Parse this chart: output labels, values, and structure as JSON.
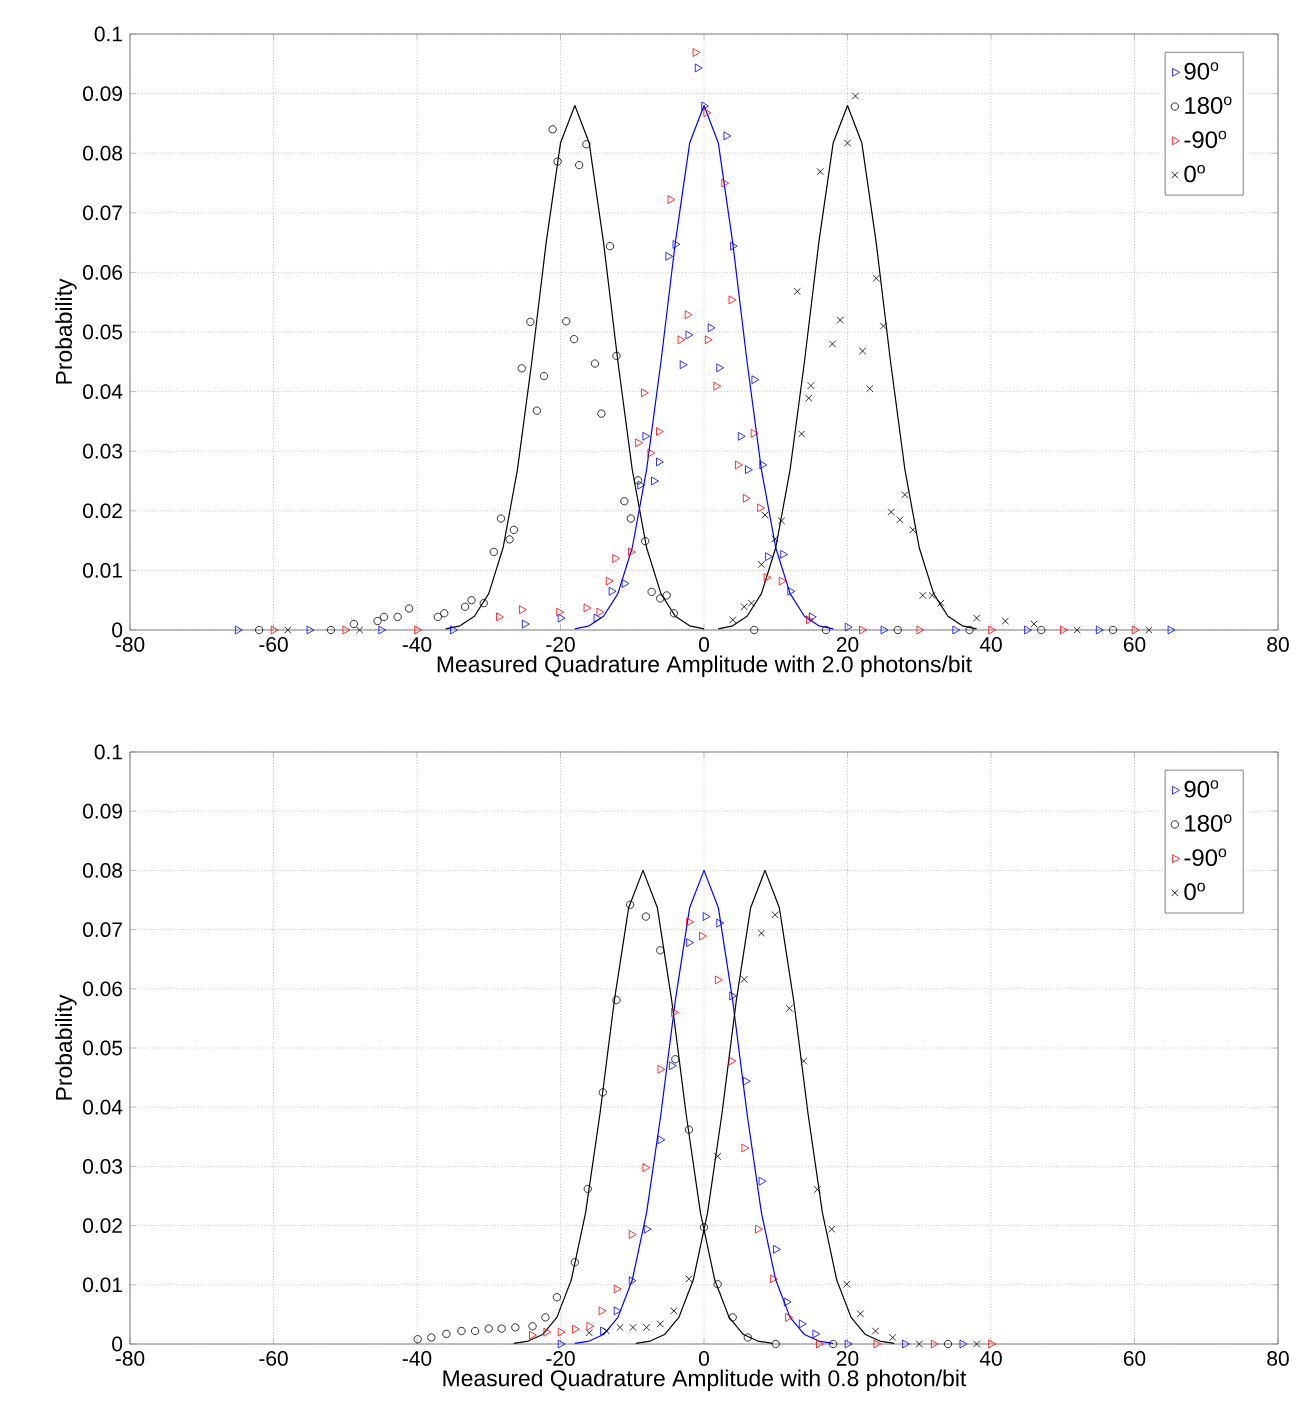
{
  "chart_data": [
    {
      "type": "scatter",
      "xlabel": "Measured Quadrature Amplitude with 2.0 photons/bit",
      "ylabel": "Probability",
      "xlim": [
        -80,
        80
      ],
      "ylim": [
        0,
        0.1
      ],
      "xticks": [
        -80,
        -60,
        -40,
        -20,
        0,
        20,
        40,
        60,
        80
      ],
      "yticks": [
        0,
        0.01,
        0.02,
        0.03,
        0.04,
        0.05,
        0.06,
        0.07,
        0.08,
        0.09,
        0.1
      ],
      "grid": true,
      "legend": "top right",
      "series": [
        {
          "name": "90$^{o}$",
          "color": "#0000ff",
          "marker": "triangle",
          "x": [
            -65,
            -55,
            -45,
            -35,
            -25,
            -20,
            -15,
            -12.9,
            -11.1,
            -8.9,
            -8.2,
            -7,
            -6.3,
            -5,
            -4,
            -3,
            -2.2,
            -0.9,
            0,
            0.9,
            2.1,
            3.1,
            4,
            5.1,
            6.1,
            7,
            8.1,
            8.9,
            11,
            12,
            15,
            20,
            25,
            35,
            45,
            55,
            65
          ],
          "values": [
            0,
            0,
            0,
            0,
            0.001,
            0.002,
            0.002,
            0.0065,
            0.0078,
            0.0243,
            0.0325,
            0.025,
            0.0282,
            0.0627,
            0.0647,
            0.0445,
            0.0495,
            0.0943,
            0.0879,
            0.0507,
            0.044,
            0.0829,
            0.0644,
            0.0325,
            0.0269,
            0.042,
            0.0277,
            0.0123,
            0.0127,
            0.0065,
            0.0022,
            0.0005,
            0,
            0,
            0,
            0,
            0
          ]
        },
        {
          "name": "180$^{o}$",
          "color": "#000000",
          "marker": "circle",
          "x": [
            -62,
            -52,
            -48.8,
            -45.5,
            -44.6,
            -42.7,
            -41.1,
            -37.1,
            -36.2,
            -33.3,
            -32.4,
            -30.7,
            -29.3,
            -28.3,
            -27.1,
            -26.5,
            -25.4,
            -24.2,
            -23.3,
            -22.3,
            -21.1,
            -20.4,
            -19.2,
            -18.1,
            -17.4,
            -16.4,
            -15.2,
            -14.3,
            -13.1,
            -12.2,
            -11.1,
            -10.2,
            -9.2,
            -8.2,
            -7.3,
            -6.1,
            -5.2,
            -4.2,
            7,
            17,
            27,
            37,
            47,
            57
          ],
          "values": [
            0,
            0,
            0.001,
            0.0015,
            0.0022,
            0.0022,
            0.0036,
            0.0022,
            0.0028,
            0.0039,
            0.005,
            0.0045,
            0.0131,
            0.0187,
            0.0152,
            0.0168,
            0.0439,
            0.0517,
            0.0368,
            0.0426,
            0.084,
            0.0786,
            0.0518,
            0.0488,
            0.078,
            0.0815,
            0.0447,
            0.0363,
            0.0644,
            0.046,
            0.0216,
            0.0187,
            0.0251,
            0.0149,
            0.0064,
            0.0053,
            0.0058,
            0.0028,
            0,
            0,
            0,
            0,
            0,
            0
          ]
        },
        {
          "name": "-90$^{o}$",
          "color": "#ff0000",
          "marker": "triangle",
          "x": [
            -60,
            -50,
            -40,
            -28.6,
            -25.4,
            -20.2,
            -16.4,
            -14.6,
            -13.3,
            -12.4,
            -10.2,
            -9.2,
            -8.4,
            -7.5,
            -6.3,
            -4.7,
            -3.3,
            -2.3,
            -1.2,
            0.3,
            0.5,
            1.7,
            2.8,
            3.8,
            4.7,
            5.8,
            6.9,
            7.8,
            8.7,
            10.8,
            14.6,
            22,
            30,
            40,
            50,
            60
          ],
          "values": [
            0,
            0,
            0,
            0.0022,
            0.0034,
            0.003,
            0.0037,
            0.003,
            0.0082,
            0.012,
            0.0131,
            0.0314,
            0.0398,
            0.0297,
            0.0333,
            0.0722,
            0.0487,
            0.0529,
            0.0969,
            0.0868,
            0.0487,
            0.0409,
            0.075,
            0.0554,
            0.0277,
            0.0221,
            0.033,
            0.0205,
            0.0088,
            0.0082,
            0.0017,
            0,
            0,
            0,
            0,
            0
          ]
        },
        {
          "name": "0$^{o}$",
          "color": "#000000",
          "marker": "cross",
          "x": [
            -58,
            -48,
            4,
            5.6,
            6.6,
            8,
            8.5,
            9.9,
            10.8,
            13,
            13.6,
            14.6,
            14.9,
            16.2,
            17.9,
            19,
            20,
            21.1,
            22.1,
            23.1,
            24,
            25,
            26.1,
            27.3,
            28,
            29.1,
            30.5,
            31.8,
            33,
            38,
            42,
            46,
            52,
            62
          ],
          "values": [
            0,
            0,
            0.0017,
            0.0039,
            0.0045,
            0.011,
            0.0193,
            0.0153,
            0.0183,
            0.0568,
            0.0329,
            0.0389,
            0.041,
            0.0769,
            0.048,
            0.052,
            0.0817,
            0.0896,
            0.0468,
            0.0405,
            0.059,
            0.051,
            0.0198,
            0.0185,
            0.0227,
            0.0168,
            0.0058,
            0.0058,
            0.0045,
            0.002,
            0.0015,
            0.001,
            0,
            0
          ]
        },
        {
          "type": "line",
          "color": "#000000",
          "marker": "none",
          "x": [
            -36,
            -34,
            -32,
            -30,
            -28,
            -26,
            -24,
            -22,
            -20,
            -18,
            -16,
            -14,
            -12,
            -10,
            -8,
            -6,
            -4,
            -2,
            0
          ],
          "values": [
            0.0002,
            0.0007,
            0.0023,
            0.0061,
            0.0138,
            0.0269,
            0.045,
            0.065,
            0.0817,
            0.088,
            0.0817,
            0.065,
            0.045,
            0.0269,
            0.0138,
            0.0061,
            0.0023,
            0.0007,
            0.0002
          ]
        },
        {
          "type": "line",
          "color": "#0000ff",
          "marker": "none",
          "x": [
            -18,
            -16,
            -14,
            -12,
            -10,
            -8,
            -6,
            -4,
            -2,
            0,
            2,
            4,
            6,
            8,
            10,
            12,
            14,
            16,
            18
          ],
          "values": [
            0.0002,
            0.0007,
            0.0023,
            0.0061,
            0.0138,
            0.0269,
            0.045,
            0.065,
            0.0817,
            0.088,
            0.0817,
            0.065,
            0.045,
            0.0269,
            0.0138,
            0.0061,
            0.0023,
            0.0007,
            0.0002
          ]
        },
        {
          "type": "line",
          "color": "#000000",
          "marker": "none",
          "x": [
            2,
            4,
            6,
            8,
            10,
            12,
            14,
            16,
            18,
            20,
            22,
            24,
            26,
            28,
            30,
            32,
            34,
            36,
            38
          ],
          "values": [
            0.0002,
            0.0007,
            0.0023,
            0.0061,
            0.0138,
            0.0269,
            0.045,
            0.065,
            0.0817,
            0.088,
            0.0817,
            0.065,
            0.045,
            0.0269,
            0.0138,
            0.0061,
            0.0023,
            0.0007,
            0.0002
          ]
        }
      ]
    },
    {
      "type": "scatter",
      "xlabel": "Measured Quadrature Amplitude with 0.8 photon/bit",
      "ylabel": "Probability",
      "xlim": [
        -80,
        80
      ],
      "ylim": [
        0,
        0.1
      ],
      "xticks": [
        -80,
        -60,
        -40,
        -20,
        0,
        20,
        40,
        60,
        80
      ],
      "yticks": [
        0,
        0.01,
        0.02,
        0.03,
        0.04,
        0.05,
        0.06,
        0.07,
        0.08,
        0.09,
        0.1
      ],
      "grid": true,
      "legend": "top right",
      "series": [
        {
          "name": "90$^{o}$",
          "color": "#0000ff",
          "marker": "triangle",
          "x": [
            -20,
            -14.1,
            -12.2,
            -10.1,
            -8,
            -6.1,
            -4.5,
            -2.1,
            0.2,
            2.1,
            3.9,
            5.8,
            8,
            10,
            11.5,
            13.6,
            15.5,
            20,
            28,
            36
          ],
          "values": [
            0,
            0.0022,
            0.0056,
            0.0107,
            0.0194,
            0.0345,
            0.047,
            0.0678,
            0.0722,
            0.0711,
            0.0588,
            0.0444,
            0.0275,
            0.016,
            0.0071,
            0.0034,
            0.0017,
            0,
            0,
            0
          ]
        },
        {
          "name": "180$^{o}$",
          "color": "#000000",
          "marker": "circle",
          "x": [
            -39.9,
            -38,
            -35.9,
            -33.8,
            -31.9,
            -30,
            -28.2,
            -26.3,
            -23.9,
            -22.1,
            -20.5,
            -18,
            -16.2,
            -14.1,
            -12.2,
            -10.3,
            -8.1,
            -6.1,
            -4,
            -2.1,
            0,
            1.9,
            4,
            6.1,
            10,
            18,
            34
          ],
          "values": [
            0.0008,
            0.0011,
            0.0017,
            0.0022,
            0.0022,
            0.0026,
            0.0026,
            0.0028,
            0.003,
            0.0045,
            0.0079,
            0.0138,
            0.0262,
            0.0425,
            0.0581,
            0.0742,
            0.0722,
            0.0665,
            0.0481,
            0.0362,
            0.0197,
            0.0101,
            0.0045,
            0.0011,
            0,
            0,
            0
          ]
        },
        {
          "name": "-90$^{o}$",
          "color": "#ff0000",
          "marker": "triangle",
          "x": [
            -24,
            -22,
            -20,
            -18,
            -16,
            -14.3,
            -12.2,
            -10.1,
            -8.2,
            -6.1,
            -4.2,
            -2.1,
            -0.3,
            1.9,
            3.8,
            5.6,
            7.5,
            9.6,
            11.7,
            16,
            24,
            32,
            40
          ],
          "values": [
            0.0015,
            0.002,
            0.002,
            0.0025,
            0.003,
            0.0056,
            0.0093,
            0.0185,
            0.0298,
            0.0464,
            0.056,
            0.0713,
            0.0689,
            0.0615,
            0.0478,
            0.0331,
            0.0194,
            0.011,
            0.0045,
            0,
            0,
            0,
            0
          ]
        },
        {
          "name": "0$^{o}$",
          "color": "#000000",
          "marker": "cross",
          "x": [
            -16,
            -13.6,
            -11.7,
            -9.9,
            -8,
            -6.1,
            -4.2,
            -2.1,
            1.9,
            5.6,
            8,
            9.9,
            11.9,
            13.9,
            15.8,
            17.8,
            19.9,
            21.8,
            23.9,
            26.3,
            30,
            38
          ],
          "values": [
            0.0019,
            0.0022,
            0.0028,
            0.0028,
            0.0028,
            0.0034,
            0.0056,
            0.011,
            0.0317,
            0.0616,
            0.0694,
            0.0725,
            0.0567,
            0.0478,
            0.0261,
            0.0194,
            0.0101,
            0.0051,
            0.0022,
            0.0011,
            0,
            0
          ]
        },
        {
          "type": "line",
          "color": "#000000",
          "marker": "none",
          "x": [
            -26.5,
            -24.5,
            -22.5,
            -20.5,
            -18.5,
            -16.5,
            -14.5,
            -12.5,
            -10.5,
            -8.5,
            -6.5,
            -4.5,
            -2.5,
            -0.5,
            1.5,
            3.5,
            5.5,
            7.5,
            9.5
          ],
          "values": [
            0.0001,
            0.0005,
            0.0016,
            0.0045,
            0.0108,
            0.0222,
            0.0389,
            0.058,
            0.0737,
            0.08,
            0.0737,
            0.058,
            0.0389,
            0.0222,
            0.0108,
            0.0045,
            0.0016,
            0.0005,
            0.0001
          ]
        },
        {
          "type": "line",
          "color": "#0000ff",
          "marker": "none",
          "x": [
            -18,
            -16,
            -14,
            -12,
            -10,
            -8,
            -6,
            -4,
            -2,
            0,
            2,
            4,
            6,
            8,
            10,
            12,
            14,
            16,
            18
          ],
          "values": [
            0.0001,
            0.0005,
            0.0016,
            0.0045,
            0.0108,
            0.0222,
            0.0389,
            0.058,
            0.0737,
            0.08,
            0.0737,
            0.058,
            0.0389,
            0.0222,
            0.0108,
            0.0045,
            0.0016,
            0.0005,
            0.0001
          ]
        },
        {
          "type": "line",
          "color": "#000000",
          "marker": "none",
          "x": [
            -9.5,
            -7.5,
            -5.5,
            -3.5,
            -1.5,
            0.5,
            2.5,
            4.5,
            6.5,
            8.5,
            10.5,
            12.5,
            14.5,
            16.5,
            18.5,
            20.5,
            22.5,
            24.5,
            26.5
          ],
          "values": [
            0.0001,
            0.0005,
            0.0016,
            0.0045,
            0.0108,
            0.0222,
            0.0389,
            0.058,
            0.0737,
            0.08,
            0.0737,
            0.058,
            0.0389,
            0.0222,
            0.0108,
            0.0045,
            0.0016,
            0.0005,
            0.0001
          ]
        }
      ]
    }
  ]
}
